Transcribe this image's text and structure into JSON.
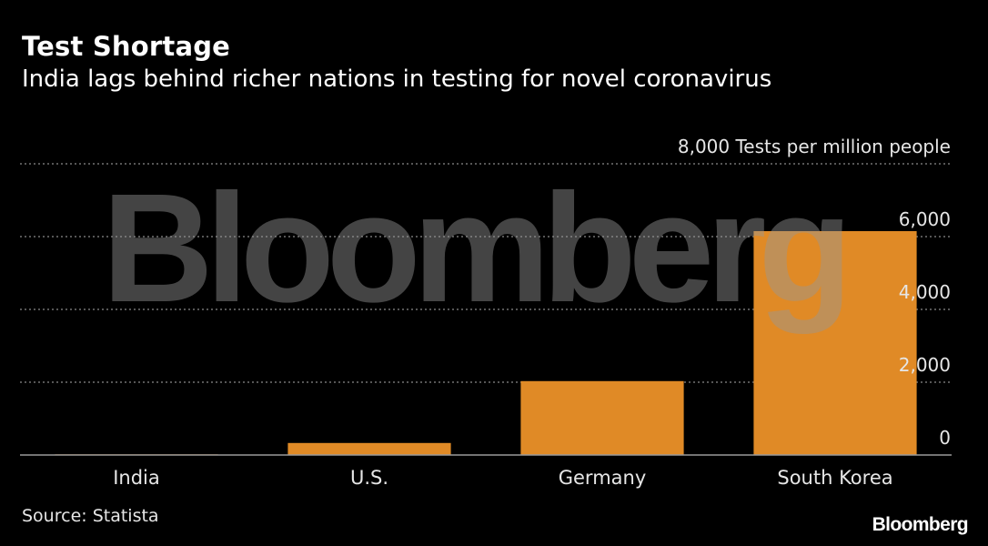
{
  "title": "Test Shortage",
  "subtitle": "India lags behind richer nations in testing for novel coronavirus",
  "source": "Source: Statista",
  "brand": "Bloomberg",
  "watermark": "Bloomberg",
  "colors": {
    "bar": "#e08a26",
    "grid": "#8a8a8a",
    "background": "#000000"
  },
  "chart_data": {
    "type": "bar",
    "unit_label": "Tests per million people",
    "categories": [
      "India",
      "U.S.",
      "Germany",
      "South Korea"
    ],
    "values": [
      18,
      330,
      2030,
      6150
    ],
    "ylim": [
      0,
      8000
    ],
    "yticks": [
      0,
      2000,
      4000,
      6000,
      8000
    ],
    "ytick_labels": [
      "0",
      "2,000",
      "4,000",
      "6,000",
      "8,000"
    ],
    "grid": true,
    "axis_position": "right"
  }
}
